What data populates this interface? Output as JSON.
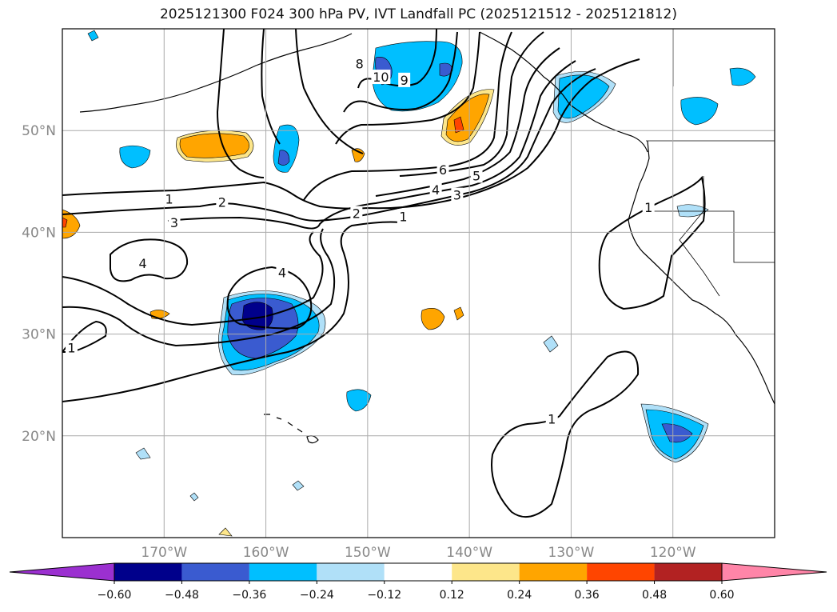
{
  "title": "2025121300 F024 300 hPa PV, IVT Landfall PC (2025121512 - 2025121812)",
  "chart_data": {
    "type": "contour-map",
    "title": "2025121300 F024 300 hPa PV, IVT Landfall PC (2025121512 - 2025121812)",
    "projection": "PlateCarree",
    "lon_range": [
      -180,
      -110
    ],
    "lat_range": [
      10,
      60
    ],
    "lon_ticks": [
      {
        "value": -170,
        "label": "170°W"
      },
      {
        "value": -160,
        "label": "160°W"
      },
      {
        "value": -150,
        "label": "150°W"
      },
      {
        "value": -140,
        "label": "140°W"
      },
      {
        "value": -130,
        "label": "130°W"
      },
      {
        "value": -120,
        "label": "120°W"
      }
    ],
    "lat_ticks": [
      {
        "value": 50,
        "label": "50°N"
      },
      {
        "value": 40,
        "label": "40°N"
      },
      {
        "value": 30,
        "label": "30°N"
      },
      {
        "value": 20,
        "label": "20°N"
      }
    ],
    "grid": true,
    "colorbar": {
      "orientation": "horizontal",
      "extend": "both",
      "levels": [
        -0.72,
        -0.6,
        -0.48,
        -0.36,
        -0.24,
        -0.12,
        0.12,
        0.24,
        0.36,
        0.48,
        0.6,
        0.72
      ],
      "tick_labels": [
        "−0.60",
        "−0.48",
        "−0.36",
        "−0.24",
        "−0.12",
        "0.12",
        "0.24",
        "0.36",
        "0.48",
        "0.60"
      ],
      "tick_values": [
        -0.6,
        -0.48,
        -0.36,
        -0.24,
        -0.12,
        0.12,
        0.24,
        0.36,
        0.48,
        0.6
      ],
      "colors": [
        "#9b30d0",
        "#00008b",
        "#3a5bd0",
        "#00bfff",
        "#b0e0f8",
        "#ffffff",
        "#fde68a",
        "#ffa500",
        "#ff4500",
        "#b22222",
        "#ff85a8"
      ]
    },
    "contour_labels": [
      {
        "text": "1",
        "lon": -169.5,
        "lat": 43.2
      },
      {
        "text": "2",
        "lon": -164.3,
        "lat": 42.9
      },
      {
        "text": "3",
        "lon": -169.0,
        "lat": 40.9
      },
      {
        "text": "4",
        "lon": -172.1,
        "lat": 36.9
      },
      {
        "text": "4",
        "lon": -158.4,
        "lat": 36.0
      },
      {
        "text": "1",
        "lon": -179.1,
        "lat": 28.6
      },
      {
        "text": "2",
        "lon": -151.1,
        "lat": 41.8
      },
      {
        "text": "1",
        "lon": -146.5,
        "lat": 41.5
      },
      {
        "text": "3",
        "lon": -141.2,
        "lat": 43.6
      },
      {
        "text": "4",
        "lon": -143.3,
        "lat": 44.1
      },
      {
        "text": "5",
        "lon": -139.3,
        "lat": 45.5
      },
      {
        "text": "6",
        "lon": -142.6,
        "lat": 46.1
      },
      {
        "text": "8",
        "lon": -150.8,
        "lat": 56.5
      },
      {
        "text": "10",
        "lon": -148.7,
        "lat": 55.2
      },
      {
        "text": "9",
        "lon": -146.4,
        "lat": 54.9
      },
      {
        "text": "1",
        "lon": -122.4,
        "lat": 42.4
      },
      {
        "text": "1",
        "lon": -131.9,
        "lat": 21.6
      }
    ]
  }
}
